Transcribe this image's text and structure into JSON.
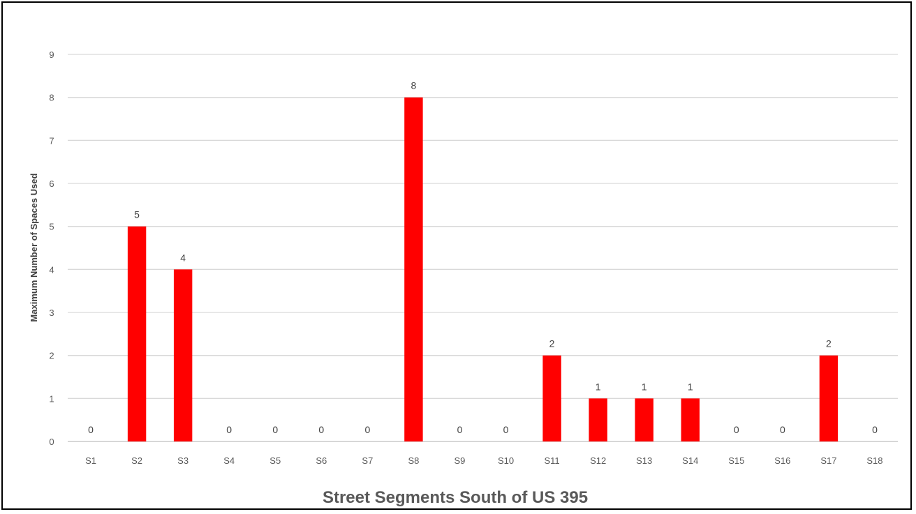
{
  "chart_data": {
    "type": "bar",
    "title": "",
    "xlabel": "Street Segments South of US 395",
    "ylabel": "Maximum Number of Spaces Used",
    "categories": [
      "S1",
      "S2",
      "S3",
      "S4",
      "S5",
      "S6",
      "S7",
      "S8",
      "S9",
      "S10",
      "S11",
      "S12",
      "S13",
      "S14",
      "S15",
      "S16",
      "S17",
      "S18"
    ],
    "values": [
      0,
      5,
      4,
      0,
      0,
      0,
      0,
      8,
      0,
      0,
      2,
      1,
      1,
      1,
      0,
      0,
      2,
      0
    ],
    "ylim": [
      0,
      9
    ],
    "yticks": [
      0,
      1,
      2,
      3,
      4,
      5,
      6,
      7,
      8,
      9
    ],
    "grid": true,
    "legend": "none",
    "bar_color": "#ff0000",
    "grid_color": "#d9d9d9",
    "data_labels": true
  }
}
